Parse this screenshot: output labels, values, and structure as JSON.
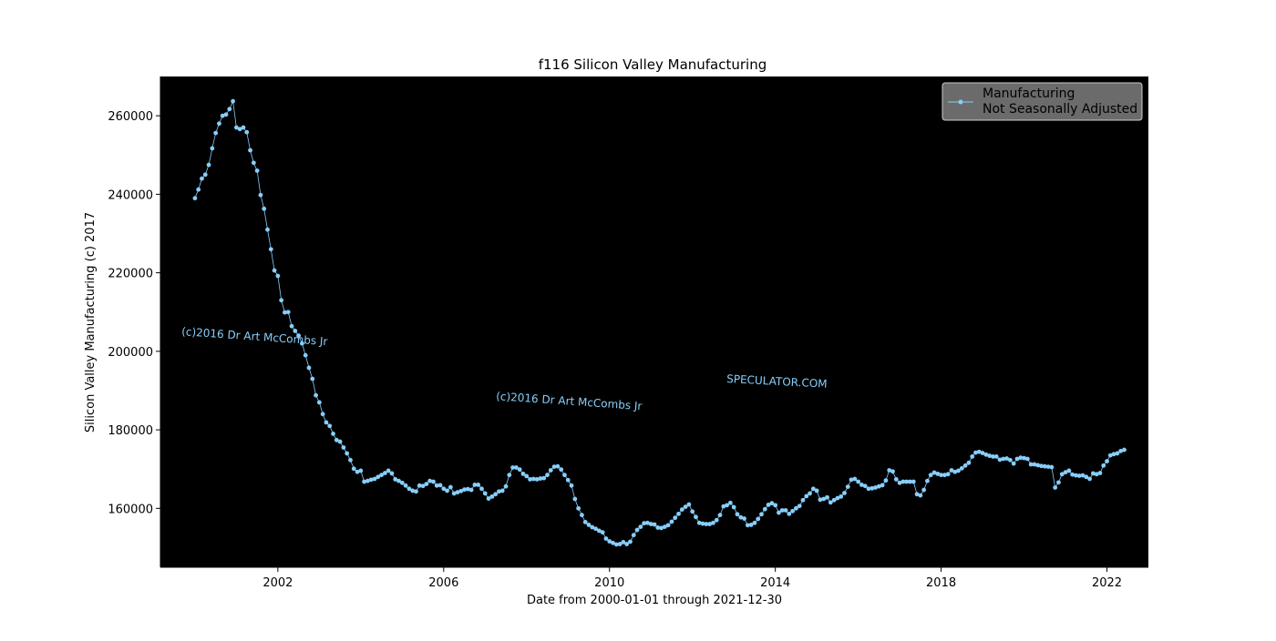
{
  "chart_data": {
    "type": "line",
    "title": "f116 Silicon Valley Manufacturing",
    "xlabel": "Date from 2000-01-01 through 2021-12-30",
    "ylabel": "Silicon Valley Manufacturing (c) 2017",
    "xlim": [
      "1999-03-01",
      "2023-01-01"
    ],
    "ylim": [
      145000,
      270000
    ],
    "x_ticks": [
      "2002",
      "2006",
      "2010",
      "2014",
      "2018",
      "2022"
    ],
    "y_ticks": [
      160000,
      180000,
      200000,
      220000,
      240000,
      260000
    ],
    "plot_background": "#000000",
    "line_color": "#87cefa",
    "legend": {
      "position": "top-right",
      "entries": [
        "Manufacturing",
        "Not Seasonally Adjusted"
      ]
    },
    "watermarks": [
      "(c)2016 Dr Art McCombs Jr",
      "(c)2016 Dr Art McCombs Jr",
      "SPECULATOR.COM"
    ],
    "series": [
      {
        "name": "Manufacturing Not Seasonally Adjusted",
        "start": "2000-01",
        "frequency": "monthly",
        "values": [
          239000,
          241200,
          244000,
          245000,
          247500,
          251700,
          255600,
          258000,
          260000,
          260300,
          261700,
          263700,
          257000,
          256600,
          257000,
          255800,
          251200,
          248000,
          246000,
          239800,
          236300,
          231000,
          226000,
          220600,
          219200,
          213000,
          209900,
          210000,
          206400,
          205200,
          204000,
          202000,
          199000,
          195800,
          193000,
          188800,
          187000,
          184000,
          181900,
          181000,
          179000,
          177400,
          177000,
          175500,
          174000,
          172300,
          170100,
          169300,
          169600,
          166800,
          167000,
          167300,
          167500,
          168000,
          168500,
          169000,
          169600,
          168900,
          167400,
          167000,
          166500,
          165800,
          165000,
          164500,
          164300,
          165800,
          165700,
          166200,
          167000,
          166800,
          165800,
          165900,
          165000,
          164500,
          165400,
          163800,
          164100,
          164400,
          164800,
          164900,
          164700,
          166000,
          166000,
          165000,
          163800,
          162500,
          163000,
          163600,
          164300,
          164500,
          165600,
          168500,
          170400,
          170400,
          169900,
          168800,
          168200,
          167400,
          167500,
          167400,
          167600,
          167700,
          168500,
          169700,
          170600,
          170700,
          169900,
          168500,
          167200,
          165800,
          162400,
          160000,
          158300,
          156500,
          155800,
          155200,
          154800,
          154300,
          153900,
          152300,
          151600,
          151200,
          150800,
          150900,
          151400,
          150900,
          151500,
          153200,
          154500,
          155300,
          156200,
          156300,
          156000,
          155900,
          155100,
          155000,
          155300,
          155700,
          156600,
          157600,
          158600,
          159700,
          160400,
          161000,
          159200,
          157800,
          156300,
          156100,
          156000,
          156000,
          156300,
          157000,
          158300,
          160500,
          160800,
          161400,
          160300,
          158500,
          157700,
          157400,
          155700,
          155800,
          156300,
          157300,
          158500,
          159800,
          160900,
          161300,
          160800,
          158900,
          159500,
          159500,
          158600,
          159300,
          160000,
          160600,
          162100,
          163100,
          163800,
          165000,
          164500,
          162200,
          162400,
          162800,
          161500,
          162100,
          162600,
          163000,
          163900,
          165500,
          167300,
          167500,
          166800,
          166000,
          165700,
          165000,
          165100,
          165300,
          165600,
          165900,
          167100,
          169700,
          169400,
          167400,
          166500,
          166800,
          166800,
          166800,
          166800,
          163600,
          163300,
          164700,
          167000,
          168500,
          169100,
          168800,
          168500,
          168500,
          168700,
          169700,
          169300,
          169600,
          170200,
          170900,
          171600,
          173200,
          174200,
          174400,
          174100,
          173700,
          173400,
          173200,
          173200,
          172400,
          172600,
          172700,
          172300,
          171400,
          172600,
          172900,
          172800,
          172600,
          171200,
          171200,
          171000,
          170800,
          170700,
          170600,
          170500,
          165300,
          166600,
          168700,
          169200,
          169600,
          168600,
          168400,
          168300,
          168400,
          168000,
          167500,
          168900,
          168700,
          169000,
          170900,
          172000,
          173500,
          173800,
          174000,
          174600,
          174900
        ]
      }
    ]
  }
}
